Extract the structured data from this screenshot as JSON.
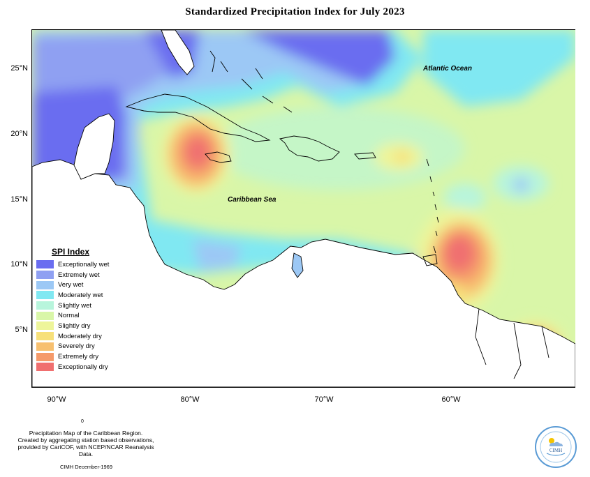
{
  "title": "Standardized Precipitation Index for July 2023",
  "ocean_labels": {
    "atlantic": "Atlantic Ocean",
    "caribbean": "Caribbean Sea"
  },
  "y_axis_labels": [
    "25°N",
    "20°N",
    "15°N",
    "10°N",
    "5°N"
  ],
  "x_axis_labels": [
    "90°W",
    "80°W",
    "70°W",
    "60°W"
  ],
  "legend": {
    "title": "SPI Index",
    "items": [
      {
        "label": "Exceptionally wet",
        "color": "#6a6df0"
      },
      {
        "label": "Extremely wet",
        "color": "#8fa0f2"
      },
      {
        "label": "Very wet",
        "color": "#9cc8f5"
      },
      {
        "label": "Moderately wet",
        "color": "#80e8f2"
      },
      {
        "label": "Slightly wet",
        "color": "#b8f5dc"
      },
      {
        "label": "Normal",
        "color": "#d9f6a8"
      },
      {
        "label": "Slightly dry",
        "color": "#eef59a"
      },
      {
        "label": "Moderately dry",
        "color": "#f7e07a"
      },
      {
        "label": "Severely dry",
        "color": "#f7c070"
      },
      {
        "label": "Extremely dry",
        "color": "#f59a6a"
      },
      {
        "label": "Exceptionally dry",
        "color": "#f06f6f"
      }
    ]
  },
  "footer": {
    "line1": "Precipitation Map of the Caribbean Region.",
    "line2": "Created by aggregating station based observations,",
    "line3": "provided by CariCOF, with NCEP/NCAR Reanalysis Data.",
    "date": "CIMH December-1969",
    "tick": "0"
  },
  "logo": {
    "text": "CIMH",
    "icon": "sun-cloud-icon"
  }
}
